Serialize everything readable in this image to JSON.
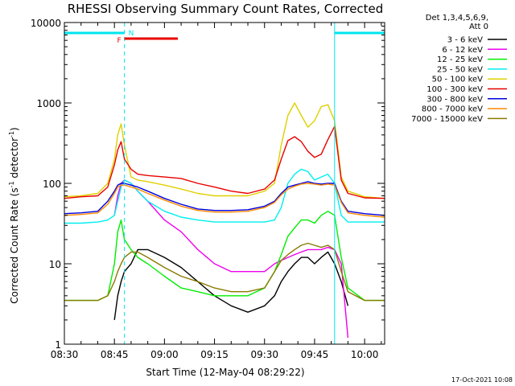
{
  "chart_data": {
    "type": "line",
    "title": "RHESSI Observing Summary Count Rates, Corrected",
    "xlabel": "Start Time (12-May-04 08:29:22)",
    "ylabel": "Corrected Count Rate (s⁻¹ detector⁻¹)",
    "ylabel_base": "Corrected Count Rate (s",
    "ylabel_mid": " detector",
    "ylabel_end": ")",
    "ylabel_sup": "-1",
    "yscale": "log",
    "xlim": [
      "08:30",
      "10:06"
    ],
    "ylim": [
      1,
      10000
    ],
    "x_ticks": [
      "08:30",
      "08:45",
      "09:00",
      "09:15",
      "09:30",
      "09:45",
      "10:00"
    ],
    "y_ticks": [
      "1",
      "10",
      "100",
      "1000",
      "10000"
    ],
    "legend_header": [
      "Det 1,3,4,5,6,9,",
      "Att 0"
    ],
    "legend_placement": "right",
    "footer_date": "17-Oct-2021 10:08",
    "annotations": [
      {
        "label": "N",
        "kind": "night",
        "segments": [
          [
            "08:30",
            "08:48"
          ],
          [
            "09:51",
            "10:06"
          ]
        ],
        "color": "#00e5ee"
      },
      {
        "label": "F",
        "kind": "flare",
        "segments": [
          [
            "08:48",
            "09:04"
          ]
        ],
        "color": "#e80000"
      }
    ],
    "vertical_markers": [
      {
        "time": "08:48",
        "style": "dashed",
        "color": "#00e5ee"
      },
      {
        "time": "09:51",
        "style": "solid",
        "color": "#00e5ee"
      },
      {
        "time": "10:06",
        "style": "dashed",
        "color": "#00e5ee"
      }
    ],
    "x": [
      "08:30",
      "08:35",
      "08:40",
      "08:43",
      "08:45",
      "08:46",
      "08:47",
      "08:48",
      "08:50",
      "08:52",
      "08:55",
      "09:00",
      "09:05",
      "09:10",
      "09:15",
      "09:20",
      "09:25",
      "09:30",
      "09:33",
      "09:35",
      "09:37",
      "09:39",
      "09:41",
      "09:43",
      "09:45",
      "09:47",
      "09:49",
      "09:51",
      "09:53",
      "09:55",
      "10:00",
      "10:06"
    ],
    "series": [
      {
        "name": "3 - 6 keV",
        "color": "#000000",
        "values": [
          null,
          null,
          null,
          null,
          2,
          4,
          6,
          8,
          10,
          15,
          15,
          12,
          9,
          6,
          4,
          3,
          2.5,
          3,
          4,
          6,
          8,
          10,
          12,
          12,
          10,
          12,
          14,
          10,
          6,
          3,
          null,
          null
        ]
      },
      {
        "name": "6 - 12 keV",
        "color": "#ee00ee",
        "values": [
          null,
          null,
          null,
          null,
          40,
          70,
          100,
          110,
          100,
          80,
          60,
          35,
          25,
          15,
          10,
          8,
          8,
          8,
          10,
          11,
          12,
          13,
          14,
          15,
          15,
          15,
          16,
          15,
          10,
          1.2,
          null,
          null
        ]
      },
      {
        "name": "12 - 25 keV",
        "color": "#00ee00",
        "values": [
          3.5,
          3.5,
          3.5,
          4,
          10,
          25,
          35,
          20,
          15,
          12,
          10,
          7,
          5,
          4.5,
          4,
          4,
          4,
          5,
          8,
          13,
          22,
          28,
          35,
          35,
          32,
          40,
          45,
          40,
          12,
          5,
          3.5,
          3.5
        ]
      },
      {
        "name": "25 - 50 keV",
        "color": "#00eeee",
        "values": [
          32,
          32,
          33,
          35,
          40,
          60,
          90,
          110,
          100,
          80,
          60,
          45,
          38,
          35,
          33,
          33,
          33,
          33,
          35,
          50,
          100,
          130,
          150,
          140,
          110,
          120,
          130,
          100,
          40,
          33,
          33,
          33
        ]
      },
      {
        "name": "50 - 100 keV",
        "color": "#e0d000",
        "values": [
          68,
          70,
          75,
          100,
          200,
          400,
          550,
          300,
          120,
          110,
          105,
          95,
          85,
          75,
          70,
          70,
          70,
          80,
          100,
          300,
          700,
          1000,
          700,
          500,
          600,
          900,
          950,
          600,
          120,
          80,
          68,
          65
        ]
      },
      {
        "name": "100 - 300 keV",
        "color": "#e80000",
        "values": [
          65,
          68,
          70,
          90,
          170,
          260,
          330,
          200,
          150,
          130,
          125,
          120,
          115,
          100,
          90,
          80,
          75,
          85,
          110,
          200,
          340,
          380,
          330,
          250,
          210,
          230,
          350,
          510,
          110,
          75,
          66,
          65
        ]
      },
      {
        "name": "300 - 800 keV",
        "color": "#0000dd",
        "values": [
          42,
          43,
          45,
          60,
          80,
          95,
          100,
          100,
          95,
          90,
          80,
          65,
          55,
          48,
          46,
          46,
          47,
          52,
          60,
          75,
          90,
          95,
          100,
          105,
          100,
          98,
          100,
          100,
          60,
          45,
          42,
          40
        ]
      },
      {
        "name": "800 - 7000 keV",
        "color": "#ff8a00",
        "values": [
          40,
          41,
          43,
          55,
          75,
          90,
          95,
          95,
          90,
          85,
          75,
          62,
          52,
          46,
          44,
          44,
          45,
          50,
          58,
          72,
          85,
          92,
          98,
          100,
          98,
          95,
          98,
          95,
          58,
          43,
          40,
          38
        ]
      },
      {
        "name": "7000 - 15000 keV",
        "color": "#8a7a00",
        "values": [
          3.5,
          3.5,
          3.5,
          4,
          6,
          8,
          10,
          12,
          14,
          14,
          12,
          9,
          7,
          6,
          5,
          4.5,
          4.5,
          5,
          8,
          11,
          13,
          15,
          17,
          18,
          17,
          16,
          17,
          15,
          8,
          4.5,
          3.5,
          3.5
        ]
      }
    ]
  }
}
